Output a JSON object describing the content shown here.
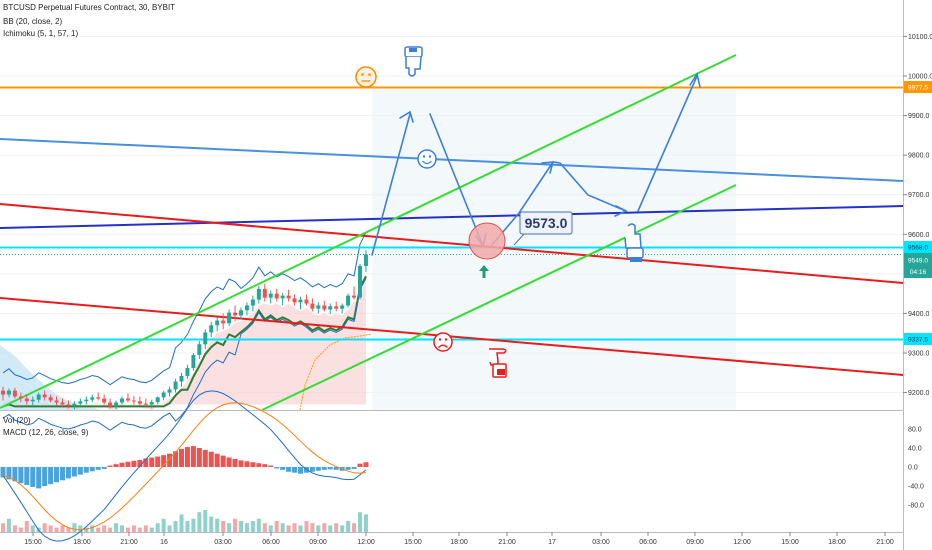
{
  "chart_data": {
    "type": "candlestick",
    "header": {
      "symbol_line": "BTCUSD Perpetual Futures Contract, 30, BYBIT",
      "bb_line": "BB (20, close, 2)",
      "ichimoku_line": "Ichimoku (5, 1, 57, 1)",
      "vol_line": "Vol (20)",
      "macd_line": "MACD (12, 26, close, 9)"
    },
    "price_axis": {
      "ticks": [
        "10100.0",
        "10000.0",
        "9900.0",
        "9800.0",
        "9700.0",
        "9600.0",
        "9400.0",
        "9300.0",
        "9200.0"
      ],
      "range": [
        9160,
        10210
      ]
    },
    "price_tags": {
      "orange_level": "9977.5",
      "cyan_upper": "9568.0",
      "last_price": "9549.0",
      "countdown": "04:16",
      "cyan_lower": "9337.5"
    },
    "macd_axis": {
      "ticks": [
        "80.0",
        "40.0",
        "0.0",
        "-40.0",
        "-80.0"
      ],
      "range": [
        -105,
        95
      ]
    },
    "time_axis": {
      "labels": [
        "15:00",
        "18:00",
        "21:00",
        "16",
        "03:00",
        "06:00",
        "09:00",
        "12:00",
        "15:00",
        "18:00",
        "21:00",
        "17",
        "03:00",
        "06:00",
        "09:00",
        "12:00",
        "15:00",
        "18:00",
        "21:00"
      ]
    },
    "annotation_price": "9573.0",
    "candles": [
      [
        9205,
        9215,
        9180,
        9195
      ],
      [
        9195,
        9210,
        9188,
        9205
      ],
      [
        9205,
        9212,
        9185,
        9190
      ],
      [
        9190,
        9200,
        9175,
        9185
      ],
      [
        9185,
        9195,
        9170,
        9178
      ],
      [
        9178,
        9190,
        9165,
        9182
      ],
      [
        9182,
        9200,
        9175,
        9195
      ],
      [
        9195,
        9205,
        9180,
        9188
      ],
      [
        9188,
        9195,
        9175,
        9180
      ],
      [
        9180,
        9190,
        9168,
        9175
      ],
      [
        9175,
        9185,
        9165,
        9170
      ],
      [
        9170,
        9180,
        9160,
        9168
      ],
      [
        9168,
        9178,
        9158,
        9172
      ],
      [
        9172,
        9185,
        9165,
        9178
      ],
      [
        9178,
        9190,
        9170,
        9182
      ],
      [
        9182,
        9195,
        9176,
        9188
      ],
      [
        9188,
        9200,
        9180,
        9185
      ],
      [
        9185,
        9195,
        9170,
        9175
      ],
      [
        9175,
        9185,
        9160,
        9165
      ],
      [
        9165,
        9180,
        9158,
        9175
      ],
      [
        9175,
        9190,
        9170,
        9185
      ],
      [
        9185,
        9198,
        9175,
        9180
      ],
      [
        9180,
        9192,
        9170,
        9178
      ],
      [
        9178,
        9190,
        9168,
        9172
      ],
      [
        9172,
        9185,
        9165,
        9170
      ],
      [
        9170,
        9182,
        9160,
        9176
      ],
      [
        9176,
        9190,
        9170,
        9188
      ],
      [
        9188,
        9205,
        9180,
        9200
      ],
      [
        9200,
        9215,
        9190,
        9208
      ],
      [
        9208,
        9235,
        9200,
        9228
      ],
      [
        9228,
        9250,
        9215,
        9242
      ],
      [
        9242,
        9270,
        9235,
        9262
      ],
      [
        9262,
        9300,
        9255,
        9295
      ],
      [
        9295,
        9330,
        9285,
        9322
      ],
      [
        9322,
        9360,
        9310,
        9352
      ],
      [
        9352,
        9378,
        9340,
        9370
      ],
      [
        9370,
        9390,
        9355,
        9382
      ],
      [
        9382,
        9400,
        9360,
        9375
      ],
      [
        9375,
        9410,
        9368,
        9402
      ],
      [
        9402,
        9420,
        9380,
        9395
      ],
      [
        9395,
        9415,
        9385,
        9408
      ],
      [
        9408,
        9428,
        9395,
        9420
      ],
      [
        9420,
        9445,
        9405,
        9435
      ],
      [
        9435,
        9470,
        9425,
        9462
      ],
      [
        9462,
        9475,
        9430,
        9440
      ],
      [
        9440,
        9458,
        9425,
        9450
      ],
      [
        9450,
        9462,
        9430,
        9438
      ],
      [
        9438,
        9452,
        9420,
        9445
      ],
      [
        9445,
        9460,
        9430,
        9438
      ],
      [
        9438,
        9448,
        9420,
        9428
      ],
      [
        9428,
        9442,
        9410,
        9435
      ],
      [
        9435,
        9448,
        9420,
        9425
      ],
      [
        9425,
        9438,
        9405,
        9412
      ],
      [
        9412,
        9428,
        9400,
        9420
      ],
      [
        9420,
        9432,
        9405,
        9410
      ],
      [
        9410,
        9425,
        9398,
        9418
      ],
      [
        9418,
        9430,
        9405,
        9412
      ],
      [
        9412,
        9425,
        9400,
        9420
      ],
      [
        9420,
        9450,
        9415,
        9445
      ],
      [
        9445,
        9468,
        9435,
        9440
      ],
      [
        9440,
        9525,
        9435,
        9520
      ],
      [
        9520,
        9560,
        9505,
        9549
      ]
    ],
    "macd": [
      {
        "h": -22
      },
      {
        "h": -26
      },
      {
        "h": -30
      },
      {
        "h": -34
      },
      {
        "h": -38
      },
      {
        "h": -42
      },
      {
        "h": -45
      },
      {
        "h": -40
      },
      {
        "h": -36
      },
      {
        "h": -32
      },
      {
        "h": -28
      },
      {
        "h": -24
      },
      {
        "h": -20
      },
      {
        "h": -16
      },
      {
        "h": -12
      },
      {
        "h": -9
      },
      {
        "h": -6
      },
      {
        "h": -4
      },
      {
        "h": 3
      },
      {
        "h": 6
      },
      {
        "h": 9
      },
      {
        "h": 11
      },
      {
        "h": 13
      },
      {
        "h": 15
      },
      {
        "h": 18
      },
      {
        "h": 20
      },
      {
        "h": 22
      },
      {
        "h": 25
      },
      {
        "h": 28
      },
      {
        "h": 33
      },
      {
        "h": 38
      },
      {
        "h": 42
      },
      {
        "h": 44
      },
      {
        "h": 40
      },
      {
        "h": 36
      },
      {
        "h": 32
      },
      {
        "h": 28
      },
      {
        "h": 24
      },
      {
        "h": 20
      },
      {
        "h": 17
      },
      {
        "h": 14
      },
      {
        "h": 12
      },
      {
        "h": 10
      },
      {
        "h": 8
      },
      {
        "h": 6
      },
      {
        "h": 3
      },
      {
        "h": -3
      },
      {
        "h": -6
      },
      {
        "h": -10
      },
      {
        "h": -12
      },
      {
        "h": -14
      },
      {
        "h": -12
      },
      {
        "h": -10
      },
      {
        "h": -8
      },
      {
        "h": -6
      },
      {
        "h": -5
      },
      {
        "h": -6
      },
      {
        "h": -8
      },
      {
        "h": -6
      },
      {
        "h": -4
      },
      {
        "h": 7
      },
      {
        "h": 10
      }
    ],
    "volume": [
      4,
      6,
      3,
      2,
      5,
      3,
      2,
      4,
      3,
      2,
      3,
      2,
      4,
      3,
      2,
      3,
      2,
      3,
      2,
      4,
      3,
      2,
      3,
      2,
      3,
      2,
      4,
      6,
      3,
      5,
      8,
      5,
      6,
      9,
      10,
      7,
      6,
      5,
      4,
      6,
      5,
      4,
      5,
      6,
      4,
      3,
      5,
      4,
      3,
      4,
      3,
      5,
      4,
      3,
      4,
      3,
      4,
      3,
      5,
      4,
      9,
      8
    ]
  },
  "colors": {
    "up": "#26a69a",
    "down": "#ef5350",
    "orange": "#ff9800",
    "cyan": "#00e5ff",
    "green": "#33dd33",
    "red": "#e81c1c",
    "blue_line": "#4a90e2",
    "navy_line": "#2431c8",
    "arrow_blue": "#3c7fd6",
    "last_price_tag": "#26a69a"
  }
}
